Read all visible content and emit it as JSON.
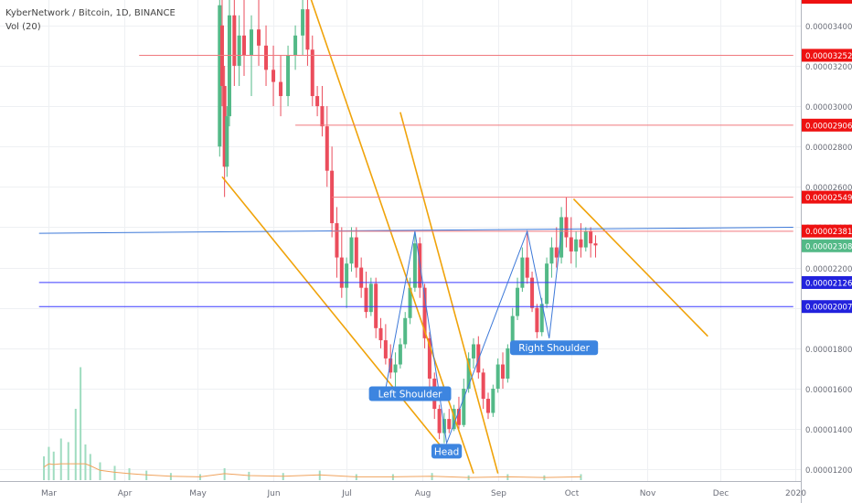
{
  "header": {
    "symbol_title": "KyberNetwork / Bitcoin, 1D, BINANCE",
    "volume_label": "Vol (20)"
  },
  "colors": {
    "bull": "#53b987",
    "bear": "#eb4d5c",
    "pattern": "#f0a30a",
    "neckline": "#3c78d8",
    "resistance": "#f0797e",
    "support": "#3a3aff",
    "callout_bg": "#3d85e0",
    "current_price_bg": "#53b987",
    "red_tag": "#ee1111",
    "blue_tag": "#2222dd"
  },
  "chart_data": {
    "type": "candlestick",
    "title": "KyberNetwork / Bitcoin, 1D, BINANCE",
    "x_axis": {
      "ticks": [
        "Mar",
        "Apr",
        "May",
        "Jun",
        "Jul",
        "Aug",
        "Sep",
        "Oct",
        "Nov",
        "Dec",
        "2020"
      ]
    },
    "y_axis": {
      "ylim": [
        1.18e-05,
        3.5e-05
      ],
      "ticks": [
        "0.00001200",
        "0.00001400",
        "0.00001600",
        "0.00001800",
        "0.00002000",
        "0.00002200",
        "0.00002400",
        "0.00002600",
        "0.00002800",
        "0.00003000",
        "0.00003200",
        "0.00003400"
      ]
    },
    "grid": true,
    "price_tags": [
      {
        "label": "0.00003252",
        "value": 3.252e-05,
        "kind": "red"
      },
      {
        "label": "0.00002906",
        "value": 2.906e-05,
        "kind": "red"
      },
      {
        "label": "0.00002549",
        "value": 2.549e-05,
        "kind": "red"
      },
      {
        "label": "0.00002381",
        "value": 2.381e-05,
        "kind": "red"
      },
      {
        "label": "0.00002308",
        "value": 2.308e-05,
        "kind": "current"
      },
      {
        "label": "0.00002126",
        "value": 2.126e-05,
        "kind": "blue"
      },
      {
        "label": "0.00002007",
        "value": 2.007e-05,
        "kind": "blue"
      }
    ],
    "annotations": [
      {
        "text": "Left Shoulder",
        "date": "2019-07-27",
        "value": 1.575e-05
      },
      {
        "text": "Head",
        "date": "2019-08-11",
        "value": 1.29e-05
      },
      {
        "text": "Right Shoulder",
        "date": "2019-09-24",
        "value": 1.803e-05
      }
    ],
    "candles": [
      {
        "d": "2019-05-10",
        "o": 2.8e-05,
        "h": 3.55e-05,
        "l": 2.75e-05,
        "c": 3.5e-05
      },
      {
        "d": "2019-05-11",
        "o": 3.4e-05,
        "h": 3.55e-05,
        "l": 3e-05,
        "c": 3.1e-05
      },
      {
        "d": "2019-05-12",
        "o": 3.1e-05,
        "h": 3.2e-05,
        "l": 2.55e-05,
        "c": 2.7e-05
      },
      {
        "d": "2019-05-13",
        "o": 2.7e-05,
        "h": 3e-05,
        "l": 2.65e-05,
        "c": 2.95e-05
      },
      {
        "d": "2019-05-14",
        "o": 2.95e-05,
        "h": 3.55e-05,
        "l": 2.9e-05,
        "c": 3.45e-05
      },
      {
        "d": "2019-05-16",
        "o": 3.45e-05,
        "h": 3.55e-05,
        "l": 3.1e-05,
        "c": 3.2e-05
      },
      {
        "d": "2019-05-18",
        "o": 3.2e-05,
        "h": 3.45e-05,
        "l": 3.1e-05,
        "c": 3.35e-05
      },
      {
        "d": "2019-05-20",
        "o": 3.35e-05,
        "h": 3.55e-05,
        "l": 3.15e-05,
        "c": 3.25e-05
      },
      {
        "d": "2019-05-23",
        "o": 3.25e-05,
        "h": 3.45e-05,
        "l": 3.05e-05,
        "c": 3.38e-05
      },
      {
        "d": "2019-05-26",
        "o": 3.38e-05,
        "h": 3.55e-05,
        "l": 3.2e-05,
        "c": 3.3e-05
      },
      {
        "d": "2019-05-29",
        "o": 3.3e-05,
        "h": 3.4e-05,
        "l": 3.1e-05,
        "c": 3.18e-05
      },
      {
        "d": "2019-06-01",
        "o": 3.18e-05,
        "h": 3.3e-05,
        "l": 3e-05,
        "c": 3.12e-05
      },
      {
        "d": "2019-06-04",
        "o": 3.12e-05,
        "h": 3.25e-05,
        "l": 2.95e-05,
        "c": 3.05e-05
      },
      {
        "d": "2019-06-07",
        "o": 3.05e-05,
        "h": 3.3e-05,
        "l": 3e-05,
        "c": 3.25e-05
      },
      {
        "d": "2019-06-10",
        "o": 3.25e-05,
        "h": 3.4e-05,
        "l": 3.18e-05,
        "c": 3.35e-05
      },
      {
        "d": "2019-06-13",
        "o": 3.35e-05,
        "h": 3.55e-05,
        "l": 3.25e-05,
        "c": 3.48e-05
      },
      {
        "d": "2019-06-15",
        "o": 3.48e-05,
        "h": 3.55e-05,
        "l": 3.2e-05,
        "c": 3.28e-05
      },
      {
        "d": "2019-06-17",
        "o": 3.28e-05,
        "h": 3.35e-05,
        "l": 3e-05,
        "c": 3.05e-05
      },
      {
        "d": "2019-06-19",
        "o": 3.05e-05,
        "h": 3.1e-05,
        "l": 2.95e-05,
        "c": 3e-05
      },
      {
        "d": "2019-06-21",
        "o": 3e-05,
        "h": 3.1e-05,
        "l": 2.85e-05,
        "c": 2.9e-05
      },
      {
        "d": "2019-06-23",
        "o": 2.9e-05,
        "h": 3e-05,
        "l": 2.6e-05,
        "c": 2.68e-05
      },
      {
        "d": "2019-06-25",
        "o": 2.68e-05,
        "h": 2.8e-05,
        "l": 2.35e-05,
        "c": 2.42e-05
      },
      {
        "d": "2019-06-27",
        "o": 2.42e-05,
        "h": 2.5e-05,
        "l": 2.15e-05,
        "c": 2.25e-05
      },
      {
        "d": "2019-06-29",
        "o": 2.25e-05,
        "h": 2.4e-05,
        "l": 2.05e-05,
        "c": 2.1e-05
      },
      {
        "d": "2019-07-01",
        "o": 2.1e-05,
        "h": 2.25e-05,
        "l": 2e-05,
        "c": 2.22e-05
      },
      {
        "d": "2019-07-03",
        "o": 2.22e-05,
        "h": 2.4e-05,
        "l": 2.18e-05,
        "c": 2.35e-05
      },
      {
        "d": "2019-07-05",
        "o": 2.35e-05,
        "h": 2.4e-05,
        "l": 2.15e-05,
        "c": 2.2e-05
      },
      {
        "d": "2019-07-07",
        "o": 2.2e-05,
        "h": 2.25e-05,
        "l": 2.05e-05,
        "c": 2.1e-05
      },
      {
        "d": "2019-07-09",
        "o": 2.1e-05,
        "h": 2.18e-05,
        "l": 1.95e-05,
        "c": 1.98e-05
      },
      {
        "d": "2019-07-11",
        "o": 1.98e-05,
        "h": 2.15e-05,
        "l": 1.96e-05,
        "c": 2.12e-05
      },
      {
        "d": "2019-07-13",
        "o": 2.12e-05,
        "h": 2.15e-05,
        "l": 1.85e-05,
        "c": 1.9e-05
      },
      {
        "d": "2019-07-15",
        "o": 1.9e-05,
        "h": 1.95e-05,
        "l": 1.8e-05,
        "c": 1.84e-05
      },
      {
        "d": "2019-07-17",
        "o": 1.84e-05,
        "h": 1.92e-05,
        "l": 1.72e-05,
        "c": 1.75e-05
      },
      {
        "d": "2019-07-19",
        "o": 1.75e-05,
        "h": 1.82e-05,
        "l": 1.65e-05,
        "c": 1.68e-05
      },
      {
        "d": "2019-07-21",
        "o": 1.68e-05,
        "h": 1.78e-05,
        "l": 1.6e-05,
        "c": 1.72e-05
      },
      {
        "d": "2019-07-23",
        "o": 1.72e-05,
        "h": 1.85e-05,
        "l": 1.7e-05,
        "c": 1.82e-05
      },
      {
        "d": "2019-07-25",
        "o": 1.82e-05,
        "h": 1.98e-05,
        "l": 1.8e-05,
        "c": 1.95e-05
      },
      {
        "d": "2019-07-27",
        "o": 1.95e-05,
        "h": 2.15e-05,
        "l": 1.92e-05,
        "c": 2.1e-05
      },
      {
        "d": "2019-07-29",
        "o": 2.1e-05,
        "h": 2.38e-05,
        "l": 2.08e-05,
        "c": 2.32e-05
      },
      {
        "d": "2019-07-31",
        "o": 2.32e-05,
        "h": 2.35e-05,
        "l": 2.05e-05,
        "c": 2.1e-05
      },
      {
        "d": "2019-08-02",
        "o": 2.1e-05,
        "h": 2.12e-05,
        "l": 1.8e-05,
        "c": 1.85e-05
      },
      {
        "d": "2019-08-04",
        "o": 1.85e-05,
        "h": 1.88e-05,
        "l": 1.6e-05,
        "c": 1.65e-05
      },
      {
        "d": "2019-08-06",
        "o": 1.65e-05,
        "h": 1.68e-05,
        "l": 1.45e-05,
        "c": 1.5e-05
      },
      {
        "d": "2019-08-08",
        "o": 1.5e-05,
        "h": 1.52e-05,
        "l": 1.35e-05,
        "c": 1.38e-05
      },
      {
        "d": "2019-08-10",
        "o": 1.38e-05,
        "h": 1.48e-05,
        "l": 1.33e-05,
        "c": 1.45e-05
      },
      {
        "d": "2019-08-12",
        "o": 1.45e-05,
        "h": 1.5e-05,
        "l": 1.38e-05,
        "c": 1.4e-05
      },
      {
        "d": "2019-08-14",
        "o": 1.4e-05,
        "h": 1.52e-05,
        "l": 1.39e-05,
        "c": 1.5e-05
      },
      {
        "d": "2019-08-16",
        "o": 1.5e-05,
        "h": 1.56e-05,
        "l": 1.4e-05,
        "c": 1.42e-05
      },
      {
        "d": "2019-08-18",
        "o": 1.42e-05,
        "h": 1.65e-05,
        "l": 1.41e-05,
        "c": 1.6e-05
      },
      {
        "d": "2019-08-20",
        "o": 1.6e-05,
        "h": 1.78e-05,
        "l": 1.58e-05,
        "c": 1.75e-05
      },
      {
        "d": "2019-08-22",
        "o": 1.75e-05,
        "h": 1.85e-05,
        "l": 1.7e-05,
        "c": 1.82e-05
      },
      {
        "d": "2019-08-24",
        "o": 1.82e-05,
        "h": 1.86e-05,
        "l": 1.65e-05,
        "c": 1.68e-05
      },
      {
        "d": "2019-08-26",
        "o": 1.68e-05,
        "h": 1.7e-05,
        "l": 1.5e-05,
        "c": 1.55e-05
      },
      {
        "d": "2019-08-28",
        "o": 1.55e-05,
        "h": 1.58e-05,
        "l": 1.45e-05,
        "c": 1.48e-05
      },
      {
        "d": "2019-08-30",
        "o": 1.48e-05,
        "h": 1.62e-05,
        "l": 1.46e-05,
        "c": 1.6e-05
      },
      {
        "d": "2019-09-01",
        "o": 1.6e-05,
        "h": 1.75e-05,
        "l": 1.58e-05,
        "c": 1.72e-05
      },
      {
        "d": "2019-09-03",
        "o": 1.72e-05,
        "h": 1.78e-05,
        "l": 1.6e-05,
        "c": 1.65e-05
      },
      {
        "d": "2019-09-05",
        "o": 1.65e-05,
        "h": 1.82e-05,
        "l": 1.63e-05,
        "c": 1.8e-05
      },
      {
        "d": "2019-09-07",
        "o": 1.8e-05,
        "h": 2e-05,
        "l": 1.78e-05,
        "c": 1.96e-05
      },
      {
        "d": "2019-09-09",
        "o": 1.96e-05,
        "h": 2.15e-05,
        "l": 1.94e-05,
        "c": 2.1e-05
      },
      {
        "d": "2019-09-11",
        "o": 2.1e-05,
        "h": 2.3e-05,
        "l": 2.08e-05,
        "c": 2.25e-05
      },
      {
        "d": "2019-09-13",
        "o": 2.25e-05,
        "h": 2.38e-05,
        "l": 2.12e-05,
        "c": 2.15e-05
      },
      {
        "d": "2019-09-15",
        "o": 2.15e-05,
        "h": 2.18e-05,
        "l": 1.98e-05,
        "c": 2e-05
      },
      {
        "d": "2019-09-17",
        "o": 2e-05,
        "h": 2.02e-05,
        "l": 1.85e-05,
        "c": 1.88e-05
      },
      {
        "d": "2019-09-19",
        "o": 1.88e-05,
        "h": 2.05e-05,
        "l": 1.86e-05,
        "c": 2.02e-05
      },
      {
        "d": "2019-09-21",
        "o": 2.02e-05,
        "h": 2.25e-05,
        "l": 2e-05,
        "c": 2.22e-05
      },
      {
        "d": "2019-09-23",
        "o": 2.22e-05,
        "h": 2.35e-05,
        "l": 2.15e-05,
        "c": 2.3e-05
      },
      {
        "d": "2019-09-25",
        "o": 2.3e-05,
        "h": 2.4e-05,
        "l": 2.2e-05,
        "c": 2.25e-05
      },
      {
        "d": "2019-09-27",
        "o": 2.25e-05,
        "h": 2.5e-05,
        "l": 2.22e-05,
        "c": 2.45e-05
      },
      {
        "d": "2019-09-29",
        "o": 2.45e-05,
        "h": 2.55e-05,
        "l": 2.3e-05,
        "c": 2.35e-05
      },
      {
        "d": "2019-10-01",
        "o": 2.35e-05,
        "h": 2.45e-05,
        "l": 2.22e-05,
        "c": 2.28e-05
      },
      {
        "d": "2019-10-03",
        "o": 2.28e-05,
        "h": 2.38e-05,
        "l": 2.2e-05,
        "c": 2.34e-05
      },
      {
        "d": "2019-10-05",
        "o": 2.34e-05,
        "h": 2.42e-05,
        "l": 2.25e-05,
        "c": 2.3e-05
      },
      {
        "d": "2019-10-07",
        "o": 2.3e-05,
        "h": 2.4e-05,
        "l": 2.28e-05,
        "c": 2.38e-05
      },
      {
        "d": "2019-10-09",
        "o": 2.38e-05,
        "h": 2.4e-05,
        "l": 2.25e-05,
        "c": 2.32e-05
      },
      {
        "d": "2019-10-11",
        "o": 2.32e-05,
        "h": 2.36e-05,
        "l": 2.25e-05,
        "c": 2.31e-05
      }
    ],
    "volume": [
      {
        "d": "2019-02-27",
        "v": 0.2
      },
      {
        "d": "2019-03-01",
        "v": 0.28
      },
      {
        "d": "2019-03-03",
        "v": 0.24
      },
      {
        "d": "2019-03-06",
        "v": 0.35
      },
      {
        "d": "2019-03-09",
        "v": 0.32
      },
      {
        "d": "2019-03-12",
        "v": 0.6
      },
      {
        "d": "2019-03-14",
        "v": 0.95
      },
      {
        "d": "2019-03-16",
        "v": 0.3
      },
      {
        "d": "2019-03-18",
        "v": 0.22
      },
      {
        "d": "2019-03-22",
        "v": 0.15
      },
      {
        "d": "2019-03-28",
        "v": 0.12
      },
      {
        "d": "2019-04-03",
        "v": 0.1
      },
      {
        "d": "2019-04-10",
        "v": 0.08
      },
      {
        "d": "2019-04-20",
        "v": 0.06
      },
      {
        "d": "2019-05-02",
        "v": 0.05
      },
      {
        "d": "2019-05-12",
        "v": 0.1
      },
      {
        "d": "2019-05-22",
        "v": 0.07
      },
      {
        "d": "2019-06-05",
        "v": 0.06
      },
      {
        "d": "2019-06-20",
        "v": 0.08
      },
      {
        "d": "2019-07-05",
        "v": 0.05
      },
      {
        "d": "2019-07-20",
        "v": 0.05
      },
      {
        "d": "2019-08-05",
        "v": 0.06
      },
      {
        "d": "2019-08-20",
        "v": 0.04
      },
      {
        "d": "2019-09-05",
        "v": 0.05
      },
      {
        "d": "2019-09-20",
        "v": 0.04
      },
      {
        "d": "2019-10-05",
        "v": 0.05
      }
    ],
    "lines": [
      {
        "kind": "pattern",
        "from": {
          "d": "2019-05-11",
          "v": 2.65e-05
        },
        "to": {
          "d": "2019-08-11",
          "v": 1.28e-05
        }
      },
      {
        "kind": "pattern",
        "from": {
          "d": "2019-06-15",
          "v": 3.58e-05
        },
        "to": {
          "d": "2019-08-22",
          "v": 1.18e-05
        }
      },
      {
        "kind": "pattern",
        "from": {
          "d": "2019-07-23",
          "v": 2.97e-05
        },
        "to": {
          "d": "2019-09-01",
          "v": 1.18e-05
        }
      },
      {
        "kind": "pattern",
        "from": {
          "d": "2019-10-02",
          "v": 2.54e-05
        },
        "to": {
          "d": "2019-11-26",
          "v": 1.86e-05
        }
      },
      {
        "kind": "neckline",
        "from": {
          "d": "2019-02-25",
          "v": 2.37e-05
        },
        "to": {
          "d": "2019-12-31",
          "v": 2.4e-05
        }
      },
      {
        "kind": "resistance",
        "from": {
          "d": "2019-06-25",
          "v": 2.38e-05
        },
        "to": {
          "d": "2019-12-31",
          "v": 2.38e-05
        }
      },
      {
        "kind": "resistance",
        "from": {
          "d": "2019-04-07",
          "v": 3.252e-05
        },
        "to": {
          "d": "2019-12-31",
          "v": 3.252e-05
        }
      },
      {
        "kind": "resistance",
        "from": {
          "d": "2019-06-10",
          "v": 2.906e-05
        },
        "to": {
          "d": "2019-12-31",
          "v": 2.906e-05
        }
      },
      {
        "kind": "resistance",
        "from": {
          "d": "2019-06-25",
          "v": 2.549e-05
        },
        "to": {
          "d": "2019-12-31",
          "v": 2.549e-05
        }
      },
      {
        "kind": "support",
        "from": {
          "d": "2019-02-25",
          "v": 2.126e-05
        },
        "to": {
          "d": "2019-12-31",
          "v": 2.126e-05
        }
      },
      {
        "kind": "support",
        "from": {
          "d": "2019-02-25",
          "v": 2.007e-05
        },
        "to": {
          "d": "2019-12-31",
          "v": 2.007e-05
        }
      },
      {
        "kind": "zigzag",
        "points": [
          {
            "d": "2019-07-17",
            "v": 1.6e-05
          },
          {
            "d": "2019-07-29",
            "v": 2.38e-05
          },
          {
            "d": "2019-08-11",
            "v": 1.33e-05
          },
          {
            "d": "2019-09-13",
            "v": 2.38e-05
          },
          {
            "d": "2019-09-22",
            "v": 1.85e-05
          },
          {
            "d": "2019-09-27",
            "v": 2.38e-05
          }
        ]
      }
    ]
  }
}
